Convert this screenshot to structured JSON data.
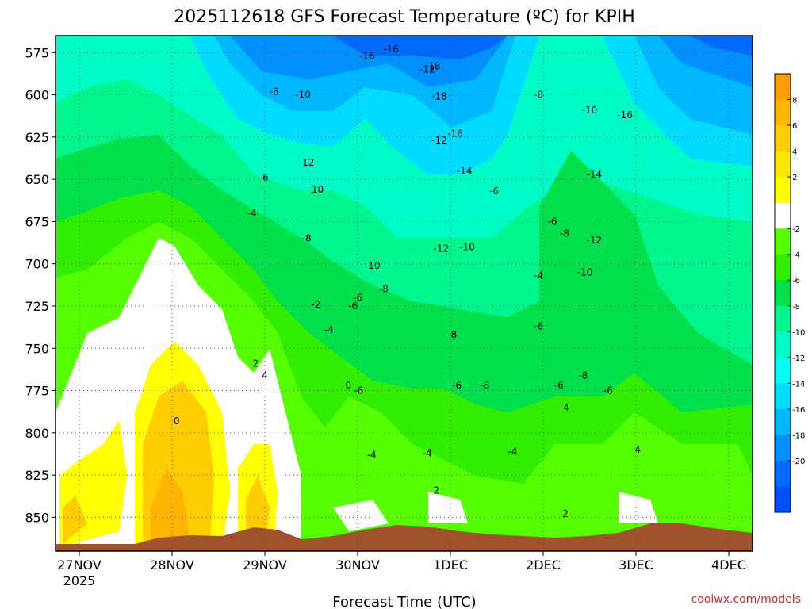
{
  "chart_data": {
    "type": "heatmap",
    "title": "2025112618 GFS Forecast Temperature (ºC) for KPIH",
    "xlabel": "Forecast Time (UTC)",
    "ylabel": "",
    "credit": "coolwx.com/models",
    "x_ticks": [
      "27NOV",
      "28NOV",
      "29NOV",
      "30NOV",
      "1DEC",
      "2DEC",
      "3DEC",
      "4DEC"
    ],
    "x_year": "2025",
    "y_ticks": [
      575,
      600,
      625,
      650,
      675,
      700,
      725,
      750,
      775,
      800,
      825,
      850
    ],
    "ylim": [
      870,
      565
    ],
    "y_unit": "hPa",
    "colorbar": {
      "labels": [
        "8",
        "6",
        "4",
        "2",
        "-2",
        "-4",
        "-6",
        "-8",
        "-10",
        "-12",
        "-14",
        "-16",
        "-18",
        "-20"
      ],
      "colors": [
        "#ff9c00",
        "#ffb400",
        "#ffcd00",
        "#ffe600",
        "#ffff00",
        "#ffffff",
        "#55ff00",
        "#31ee00",
        "#00e04a",
        "#00f58c",
        "#00fcc6",
        "#00fef4",
        "#00dcff",
        "#00b8ff",
        "#0090ff",
        "#006aff",
        "#0050ff"
      ]
    },
    "contour_labels": [
      {
        "t": 0.1,
        "p": 577,
        "v": "-16"
      },
      {
        "t": 0.36,
        "p": 573,
        "v": "-16"
      },
      {
        "t": 0.75,
        "p": 585,
        "v": "-12"
      },
      {
        "t": 0.81,
        "p": 583,
        "v": "-18"
      },
      {
        "t": -0.9,
        "p": 598,
        "v": "-8"
      },
      {
        "t": -0.59,
        "p": 600,
        "v": "-10"
      },
      {
        "t": 0.88,
        "p": 601,
        "v": "-18"
      },
      {
        "t": 1.95,
        "p": 600,
        "v": "-8"
      },
      {
        "t": 2.5,
        "p": 609,
        "v": "-10"
      },
      {
        "t": 2.88,
        "p": 612,
        "v": "-16"
      },
      {
        "t": 0.88,
        "p": 627,
        "v": "-12"
      },
      {
        "t": 1.05,
        "p": 623,
        "v": "-16"
      },
      {
        "t": -0.55,
        "p": 640,
        "v": "-12"
      },
      {
        "t": -1.01,
        "p": 649,
        "v": "-6"
      },
      {
        "t": 1.15,
        "p": 645,
        "v": "-14"
      },
      {
        "t": 1.47,
        "p": 657,
        "v": "-6"
      },
      {
        "t": 2.55,
        "p": 647,
        "v": "-14"
      },
      {
        "t": -0.45,
        "p": 656,
        "v": "-10"
      },
      {
        "t": -1.14,
        "p": 670,
        "v": "-4"
      },
      {
        "t": -0.55,
        "p": 685,
        "v": "-8"
      },
      {
        "t": 0.9,
        "p": 691,
        "v": "-12"
      },
      {
        "t": 1.18,
        "p": 690,
        "v": "-10"
      },
      {
        "t": 2.23,
        "p": 682,
        "v": "-8"
      },
      {
        "t": 2.1,
        "p": 675,
        "v": "-6"
      },
      {
        "t": 2.55,
        "p": 686,
        "v": "-12"
      },
      {
        "t": 0.16,
        "p": 701,
        "v": "-10"
      },
      {
        "t": 1.95,
        "p": 707,
        "v": "-4"
      },
      {
        "t": 2.45,
        "p": 705,
        "v": "-10"
      },
      {
        "t": 0.28,
        "p": 715,
        "v": "-8"
      },
      {
        "t": -0.45,
        "p": 724,
        "v": "-2"
      },
      {
        "t": -0.05,
        "p": 725,
        "v": "-6"
      },
      {
        "t": -0.31,
        "p": 739,
        "v": "-4"
      },
      {
        "t": 1.02,
        "p": 742,
        "v": "-8"
      },
      {
        "t": 1.95,
        "p": 737,
        "v": "-6"
      },
      {
        "t": 0.0,
        "p": 720,
        "v": "-6"
      },
      {
        "t": -1.1,
        "p": 759,
        "v": "2"
      },
      {
        "t": -1.0,
        "p": 766,
        "v": "4"
      },
      {
        "t": -0.1,
        "p": 772,
        "v": "0"
      },
      {
        "t": 0.01,
        "p": 775,
        "v": "-6"
      },
      {
        "t": 1.07,
        "p": 772,
        "v": "-6"
      },
      {
        "t": 1.37,
        "p": 772,
        "v": "-8"
      },
      {
        "t": 2.43,
        "p": 766,
        "v": "-8"
      },
      {
        "t": 2.17,
        "p": 772,
        "v": "-6"
      },
      {
        "t": 2.7,
        "p": 775,
        "v": "-6"
      },
      {
        "t": 2.23,
        "p": 785,
        "v": "-4"
      },
      {
        "t": -1.95,
        "p": 793,
        "v": "0"
      },
      {
        "t": 0.15,
        "p": 813,
        "v": "-4"
      },
      {
        "t": 0.75,
        "p": 812,
        "v": "-4"
      },
      {
        "t": 1.67,
        "p": 811,
        "v": "-4"
      },
      {
        "t": 3.0,
        "p": 810,
        "v": "-4"
      },
      {
        "t": 0.85,
        "p": 834,
        "v": "2"
      },
      {
        "t": 2.24,
        "p": 848,
        "v": "2"
      }
    ]
  }
}
